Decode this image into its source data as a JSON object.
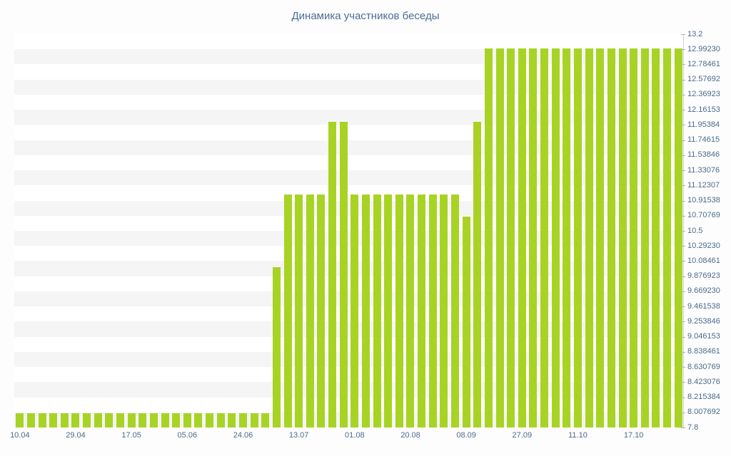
{
  "chart_data": {
    "type": "bar",
    "title": "Динамика участников беседы",
    "xlabel": "",
    "ylabel": "",
    "ylim": [
      7.8,
      13.2
    ],
    "grid": "horizontal-bands",
    "legend": "none",
    "y_axis_side": "right",
    "y_tick_labels": [
      "13.2",
      "12.99230",
      "12.78461",
      "12.57692",
      "12.36923",
      "12.16153",
      "11.95384",
      "11.74615",
      "11.53846",
      "11.33076",
      "11.12307",
      "10.91538",
      "10.70769",
      "10.5",
      "10.29230",
      "10.08461",
      "9.876923",
      "9.669230",
      "9.461538",
      "9.253846",
      "9.046153",
      "8.838461",
      "8.630769",
      "8.423076",
      "8.215384",
      "8.007692",
      "7.8"
    ],
    "x_tick_labels": [
      "10.04",
      "29.04",
      "17.05",
      "05.06",
      "24.06",
      "13.07",
      "01.08",
      "20.08",
      "08.09",
      "27.09",
      "11.10",
      "17.10"
    ],
    "bars_per_x_label": 5,
    "values": [
      8,
      8,
      8,
      8,
      8,
      8,
      8,
      8,
      8,
      8,
      8,
      8,
      8,
      8,
      8,
      8,
      8,
      8,
      8,
      8,
      8,
      8,
      8,
      10,
      11,
      11,
      11,
      11,
      12,
      12,
      11,
      11,
      11,
      11,
      11,
      11,
      11,
      11,
      11,
      11,
      10.7,
      12,
      13,
      13,
      13,
      13,
      13,
      13,
      13,
      13,
      13,
      13,
      13,
      13,
      13,
      13,
      13,
      13,
      13,
      13
    ]
  },
  "colors": {
    "bar": "#a8d324",
    "title": "#4a6e96",
    "tick_label": "#4a6b8c",
    "axis_line": "#ccd3d9",
    "tick_mark": "#a9b6c2",
    "band_shaded": "#f5f5f5",
    "band_plain": "#ffffff",
    "background": "#fdfdfd"
  }
}
